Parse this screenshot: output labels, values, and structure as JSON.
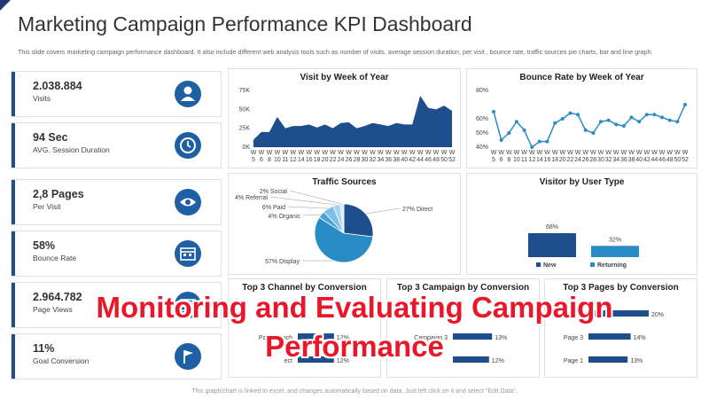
{
  "title": "Marketing Campaign Performance KPI Dashboard",
  "subtitle": "This slide covers marketing campaign performance dashboard. It also include different web analysis tools such as number of visits, average session duration, per visit , bounce rate, traffic sources pie charts, bar and line graph.",
  "kpis": [
    {
      "value": "2.038.884",
      "label": "Visits",
      "icon": "person-icon"
    },
    {
      "value": "94 Sec",
      "label": "AVG. Session Duration",
      "icon": "clock-icon"
    },
    {
      "value": "2,8 Pages",
      "label": "Per Visit",
      "icon": "eye-icon"
    },
    {
      "value": "58%",
      "label": "Bounce Rate",
      "icon": "calendar-icon"
    },
    {
      "value": "2.964.782",
      "label": "Page Views",
      "icon": "browser-icon"
    },
    {
      "value": "11%",
      "label": "Goal Conversion",
      "icon": "flag-icon"
    }
  ],
  "charts": {
    "visits_title": "Visit by Week of Year",
    "bounce_title": "Bounce Rate by Week of Year",
    "traffic_title": "Traffic Sources",
    "visitor_title": "Visitor by User Type",
    "channel_title": "Top 3 Channel by Conversion",
    "campaign_title": "Top 3 Campaign by Conversion",
    "pages_title": "Top 3 Pages by Conversion"
  },
  "chart_data": [
    {
      "type": "area",
      "title": "Visit by Week of Year",
      "yticks": [
        "75K",
        "50K",
        "25K",
        "0K"
      ],
      "ylim": [
        0,
        75000
      ],
      "x": [
        5,
        6,
        8,
        10,
        11,
        12,
        14,
        16,
        18,
        20,
        22,
        24,
        26,
        28,
        30,
        32,
        34,
        36,
        38,
        40,
        42,
        44,
        46,
        48,
        50,
        52
      ],
      "values": [
        10000,
        20000,
        20000,
        40000,
        25000,
        28000,
        28000,
        30000,
        26000,
        30000,
        25000,
        32000,
        33000,
        25000,
        28000,
        32000,
        30000,
        28000,
        32000,
        30000,
        30000,
        68000,
        52000,
        50000,
        55000,
        48000
      ],
      "color": "#1f4e8c"
    },
    {
      "type": "line",
      "title": "Bounce Rate by Week of Year",
      "yticks": [
        "80%",
        "60%",
        "50%",
        "40%"
      ],
      "ylim": [
        40,
        80
      ],
      "x": [
        5,
        6,
        8,
        10,
        11,
        12,
        14,
        16,
        18,
        20,
        22,
        24,
        26,
        28,
        30,
        32,
        34,
        36,
        38,
        40,
        42,
        44,
        46,
        48,
        50,
        52
      ],
      "values": [
        65,
        45,
        50,
        58,
        52,
        40,
        44,
        44,
        57,
        60,
        64,
        63,
        52,
        50,
        58,
        59,
        56,
        55,
        61,
        58,
        63,
        63,
        61,
        59,
        58,
        70
      ],
      "color": "#2a8cc4"
    },
    {
      "type": "pie",
      "title": "Traffic Sources",
      "slices": [
        {
          "label": "27% Direct",
          "value": 27,
          "color": "#1f4e8c"
        },
        {
          "label": "57% Display",
          "value": 57,
          "color": "#2a8cc4"
        },
        {
          "label": "4% Organic",
          "value": 4,
          "color": "#4aa3d9"
        },
        {
          "label": "6% Paid",
          "value": 6,
          "color": "#7cc0e8"
        },
        {
          "label": "4% Referral",
          "value": 4,
          "color": "#a9d5f0"
        },
        {
          "label": "2% Social",
          "value": 2,
          "color": "#d5ebf8"
        }
      ]
    },
    {
      "type": "bar",
      "title": "Visitor by User Type",
      "categories": [
        "New",
        "Returning"
      ],
      "values": [
        68,
        32
      ],
      "labels": [
        "68%",
        "32%"
      ],
      "colors": [
        "#1f4e8c",
        "#2a8cc4"
      ]
    },
    {
      "type": "bar",
      "title": "Top 3 Channel by Conversion",
      "categories": [
        "",
        "Paid Serach",
        "ect"
      ],
      "values": [
        null,
        12,
        12
      ],
      "labels": [
        "",
        "12%",
        "12%"
      ]
    },
    {
      "type": "bar",
      "title": "Top 3 Campaign by Conversion",
      "categories": [
        "",
        "Campaign 3",
        ""
      ],
      "values": [
        null,
        13,
        12
      ],
      "labels": [
        "",
        "13%",
        "12%"
      ]
    },
    {
      "type": "bar",
      "title": "Top 3 Pages by Conversion",
      "categories": [
        "",
        "Page 3",
        "Page 1"
      ],
      "values": [
        20,
        14,
        13
      ],
      "labels": [
        "20%",
        "14%",
        "13%"
      ]
    }
  ],
  "overlay": {
    "line1": "Monitoring and Evaluating Campaign",
    "line2": "Performance"
  },
  "footer": "This graph/chart is linked to excel, and changes automatically based on data. Just left click on it and select \"Edit Data\"."
}
